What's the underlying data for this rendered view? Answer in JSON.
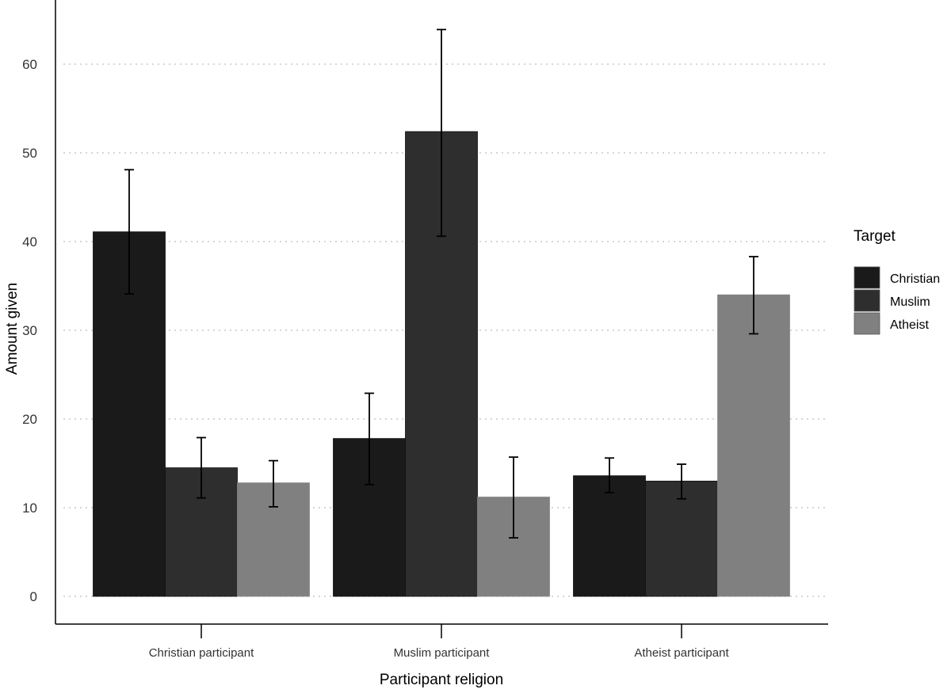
{
  "chart_data": {
    "type": "bar",
    "title": "",
    "xlabel": "Participant religion",
    "ylabel": "Amount given",
    "ylim": [
      0,
      65
    ],
    "yticks": [
      "0",
      "10",
      "20",
      "30",
      "40",
      "50",
      "60"
    ],
    "grid": "horizontal dotted",
    "categories": [
      "Christian participant",
      "Muslim participant",
      "Atheist participant"
    ],
    "legend": {
      "title": "Target",
      "position": "right"
    },
    "series": [
      {
        "name": "Christian",
        "color": "#1a1a1a",
        "values": [
          41.1,
          17.8,
          13.6
        ],
        "error_low": [
          34.1,
          12.6,
          11.7
        ],
        "error_high": [
          48.1,
          22.9,
          15.6
        ]
      },
      {
        "name": "Muslim",
        "color": "#2e2e2e",
        "values": [
          14.5,
          52.4,
          13.0
        ],
        "error_low": [
          11.1,
          40.6,
          11.0
        ],
        "error_high": [
          17.9,
          63.9,
          14.9
        ]
      },
      {
        "name": "Atheist",
        "color": "#808080",
        "values": [
          12.8,
          11.2,
          34.0
        ],
        "error_low": [
          10.1,
          6.6,
          29.6
        ],
        "error_high": [
          15.3,
          15.7,
          38.3
        ]
      }
    ]
  }
}
